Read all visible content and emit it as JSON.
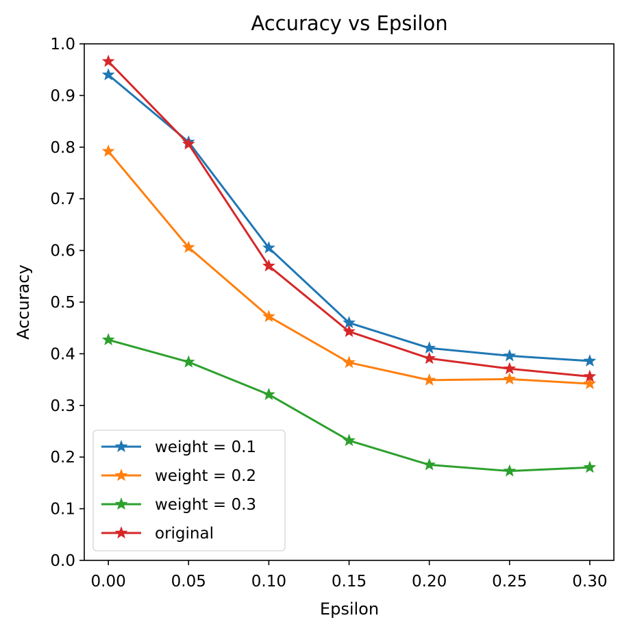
{
  "chart_data": {
    "type": "line",
    "title": "Accuracy vs Epsilon",
    "xlabel": "Epsilon",
    "ylabel": "Accuracy",
    "x": [
      0.0,
      0.05,
      0.1,
      0.15,
      0.2,
      0.25,
      0.3
    ],
    "xticks": [
      "0.00",
      "0.05",
      "0.10",
      "0.15",
      "0.20",
      "0.25",
      "0.30"
    ],
    "yticks": [
      "0.0",
      "0.1",
      "0.2",
      "0.3",
      "0.4",
      "0.5",
      "0.6",
      "0.7",
      "0.8",
      "0.9",
      "1.0"
    ],
    "xlim": [
      -0.015,
      0.315
    ],
    "ylim": [
      0.0,
      1.0
    ],
    "grid": false,
    "legend_position": "lower-left",
    "marker": "star",
    "series": [
      {
        "name": "weight = 0.1",
        "color": "#1f77b4",
        "values": [
          0.94,
          0.81,
          0.605,
          0.46,
          0.411,
          0.396,
          0.386
        ]
      },
      {
        "name": "weight = 0.2",
        "color": "#ff7f0e",
        "values": [
          0.792,
          0.606,
          0.472,
          0.383,
          0.349,
          0.351,
          0.342
        ]
      },
      {
        "name": "weight = 0.3",
        "color": "#2ca02c",
        "values": [
          0.427,
          0.384,
          0.321,
          0.232,
          0.185,
          0.173,
          0.18
        ]
      },
      {
        "name": "original",
        "color": "#d62728",
        "values": [
          0.966,
          0.806,
          0.57,
          0.443,
          0.391,
          0.371,
          0.356
        ]
      }
    ]
  }
}
